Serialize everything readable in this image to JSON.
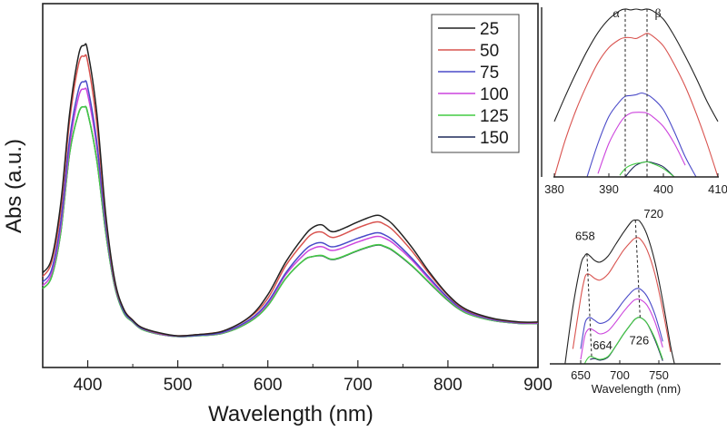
{
  "chart_data": [
    {
      "id": "main",
      "type": "line",
      "title": "",
      "xlabel": "Wavelength (nm)",
      "ylabel": "Abs (a.u.)",
      "xlim": [
        350,
        900
      ],
      "ylim": [
        0,
        1
      ],
      "xticks": [
        400,
        500,
        600,
        700,
        800,
        900
      ],
      "xtick_labels": [
        "400",
        "500",
        "600",
        "700",
        "800",
        "900"
      ],
      "yticks": [],
      "grid": false,
      "legend": {
        "placement": "top-right",
        "title": ""
      },
      "x": [
        350,
        360,
        370,
        380,
        390,
        396,
        400,
        410,
        420,
        430,
        440,
        450,
        460,
        480,
        500,
        520,
        550,
        580,
        600,
        620,
        640,
        650,
        660,
        670,
        680,
        700,
        720,
        730,
        740,
        760,
        780,
        800,
        820,
        850,
        880,
        900
      ],
      "series": [
        {
          "name": "25",
          "color": "#222222",
          "values": [
            0.26,
            0.3,
            0.45,
            0.7,
            0.86,
            0.885,
            0.87,
            0.7,
            0.42,
            0.24,
            0.16,
            0.13,
            0.11,
            0.095,
            0.087,
            0.09,
            0.1,
            0.14,
            0.2,
            0.29,
            0.36,
            0.385,
            0.392,
            0.374,
            0.378,
            0.4,
            0.418,
            0.41,
            0.39,
            0.33,
            0.26,
            0.2,
            0.16,
            0.135,
            0.125,
            0.125
          ]
        },
        {
          "name": "50",
          "color": "#d9534f",
          "values": [
            0.25,
            0.29,
            0.43,
            0.68,
            0.835,
            0.855,
            0.84,
            0.67,
            0.41,
            0.235,
            0.16,
            0.13,
            0.11,
            0.094,
            0.087,
            0.09,
            0.1,
            0.138,
            0.19,
            0.28,
            0.345,
            0.368,
            0.372,
            0.358,
            0.362,
            0.384,
            0.4,
            0.393,
            0.375,
            0.32,
            0.255,
            0.198,
            0.158,
            0.134,
            0.124,
            0.124
          ]
        },
        {
          "name": "75",
          "color": "#4a4ac8",
          "values": [
            0.235,
            0.27,
            0.4,
            0.63,
            0.765,
            0.785,
            0.77,
            0.62,
            0.39,
            0.23,
            0.155,
            0.128,
            0.108,
            0.093,
            0.086,
            0.088,
            0.097,
            0.132,
            0.18,
            0.26,
            0.32,
            0.338,
            0.343,
            0.332,
            0.336,
            0.355,
            0.37,
            0.364,
            0.348,
            0.3,
            0.245,
            0.192,
            0.155,
            0.132,
            0.123,
            0.123
          ]
        },
        {
          "name": "100",
          "color": "#cc44dd",
          "values": [
            0.225,
            0.26,
            0.385,
            0.61,
            0.745,
            0.765,
            0.75,
            0.605,
            0.385,
            0.228,
            0.154,
            0.127,
            0.107,
            0.092,
            0.086,
            0.088,
            0.096,
            0.13,
            0.176,
            0.255,
            0.31,
            0.327,
            0.332,
            0.322,
            0.326,
            0.345,
            0.36,
            0.355,
            0.34,
            0.295,
            0.24,
            0.19,
            0.153,
            0.131,
            0.122,
            0.122
          ]
        },
        {
          "name": "125",
          "color": "#44cc44",
          "values": [
            0.217,
            0.25,
            0.37,
            0.59,
            0.7,
            0.716,
            0.7,
            0.57,
            0.37,
            0.222,
            0.15,
            0.125,
            0.105,
            0.091,
            0.085,
            0.087,
            0.094,
            0.126,
            0.17,
            0.245,
            0.295,
            0.305,
            0.308,
            0.298,
            0.302,
            0.322,
            0.337,
            0.333,
            0.32,
            0.28,
            0.232,
            0.185,
            0.15,
            0.129,
            0.121,
            0.121
          ]
        },
        {
          "name": "150",
          "color": "#1f2a5a",
          "values": [
            0.217,
            0.25,
            0.37,
            0.59,
            0.7,
            0.716,
            0.7,
            0.57,
            0.37,
            0.222,
            0.15,
            0.125,
            0.105,
            0.091,
            0.085,
            0.087,
            0.094,
            0.126,
            0.17,
            0.245,
            0.295,
            0.305,
            0.307,
            0.297,
            0.301,
            0.321,
            0.336,
            0.332,
            0.319,
            0.279,
            0.231,
            0.184,
            0.15,
            0.129,
            0.121,
            0.121
          ]
        }
      ]
    },
    {
      "id": "inset-soret",
      "type": "line",
      "title": "",
      "xlabel": "",
      "ylabel": "",
      "xlim": [
        380,
        410
      ],
      "ylim": [
        0,
        1
      ],
      "xticks": [
        380,
        390,
        400,
        410
      ],
      "xtick_labels": [
        "380",
        "390",
        "400",
        "410"
      ],
      "grid": false,
      "annotations": [
        {
          "text": "α",
          "x": 393
        },
        {
          "text": "β",
          "x": 397
        }
      ],
      "dashed_lines_x": [
        393,
        397
      ],
      "x": [
        380,
        382,
        384,
        386,
        388,
        390,
        392,
        393,
        394,
        395,
        396,
        397,
        398,
        400,
        402,
        404,
        406,
        408,
        410
      ],
      "series": [
        {
          "name": "25",
          "color": "#222222",
          "values": [
            0.33,
            0.48,
            0.62,
            0.75,
            0.86,
            0.94,
            0.99,
            1.0,
            0.995,
            1.0,
            0.995,
            1.0,
            0.99,
            0.94,
            0.84,
            0.72,
            0.59,
            0.45,
            0.33
          ]
        },
        {
          "name": "50",
          "color": "#d9534f",
          "values": [
            0.0,
            0.22,
            0.4,
            0.55,
            0.68,
            0.77,
            0.82,
            0.83,
            0.83,
            0.825,
            0.84,
            0.855,
            0.84,
            0.78,
            0.67,
            0.54,
            0.38,
            0.2,
            0.0
          ]
        },
        {
          "name": "75",
          "color": "#4a4ac8",
          "values": [
            null,
            null,
            null,
            0.0,
            0.2,
            0.36,
            0.45,
            0.48,
            0.485,
            0.49,
            0.5,
            0.49,
            0.47,
            0.4,
            0.27,
            0.12,
            0.0,
            null,
            null
          ]
        },
        {
          "name": "100",
          "color": "#cc44dd",
          "values": [
            null,
            null,
            null,
            null,
            0.02,
            0.2,
            0.32,
            0.36,
            0.38,
            0.385,
            0.385,
            0.38,
            0.36,
            0.3,
            0.2,
            0.07,
            null,
            null,
            null
          ]
        },
        {
          "name": "125",
          "color": "#44cc44",
          "values": [
            null,
            null,
            null,
            null,
            null,
            null,
            0.01,
            0.05,
            0.07,
            0.08,
            0.085,
            0.09,
            0.08,
            0.05,
            0.0,
            null,
            null,
            null,
            null
          ]
        },
        {
          "name": "150",
          "color": "#1f2a5a",
          "values": [
            null,
            null,
            null,
            null,
            null,
            null,
            null,
            0.0,
            0.04,
            0.07,
            0.085,
            0.09,
            0.085,
            0.06,
            0.0,
            null,
            null,
            null,
            null
          ]
        }
      ]
    },
    {
      "id": "inset-q-band",
      "type": "line",
      "title": "",
      "xlabel": "Wavelength (nm)",
      "ylabel": "",
      "xlim": [
        630,
        770
      ],
      "ylim": [
        0,
        1
      ],
      "xticks": [
        650,
        700,
        750
      ],
      "xtick_labels": [
        "650",
        "700",
        "750"
      ],
      "grid": false,
      "annotations": [
        {
          "text": "658",
          "x": 658,
          "y": 0.78
        },
        {
          "text": "720",
          "x": 720,
          "y": 1.0
        },
        {
          "text": "664",
          "x": 664,
          "y": 0.12
        },
        {
          "text": "726",
          "x": 726,
          "y": 0.3
        }
      ],
      "dashed_lines": [
        {
          "x1": 658,
          "x2": 664
        },
        {
          "x1": 720,
          "x2": 726
        }
      ],
      "x": [
        630,
        640,
        650,
        655,
        658,
        662,
        668,
        675,
        685,
        695,
        705,
        715,
        720,
        726,
        735,
        745,
        755,
        765,
        770
      ],
      "series": [
        {
          "name": "25",
          "color": "#222222",
          "values": [
            0.0,
            0.38,
            0.66,
            0.72,
            0.735,
            0.72,
            0.69,
            0.68,
            0.72,
            0.8,
            0.88,
            0.95,
            0.96,
            0.95,
            0.86,
            0.68,
            0.42,
            0.12,
            0.0
          ]
        },
        {
          "name": "50",
          "color": "#d9534f",
          "values": [
            null,
            0.1,
            0.44,
            0.57,
            0.6,
            0.595,
            0.57,
            0.56,
            0.6,
            0.68,
            0.76,
            0.82,
            0.84,
            0.835,
            0.76,
            0.6,
            0.36,
            0.08,
            null
          ]
        },
        {
          "name": "75",
          "color": "#4a4ac8",
          "values": [
            null,
            null,
            0.1,
            0.26,
            0.3,
            0.31,
            0.29,
            0.27,
            0.29,
            0.35,
            0.42,
            0.48,
            0.5,
            0.5,
            0.45,
            0.33,
            0.15,
            null,
            null
          ]
        },
        {
          "name": "100",
          "color": "#cc44dd",
          "values": [
            null,
            null,
            0.03,
            0.18,
            0.22,
            0.235,
            0.22,
            0.2,
            0.22,
            0.28,
            0.35,
            0.41,
            0.43,
            0.43,
            0.39,
            0.28,
            0.11,
            null,
            null
          ]
        },
        {
          "name": "125",
          "color": "#44cc44",
          "values": [
            null,
            null,
            null,
            0.0,
            0.03,
            0.05,
            0.04,
            0.03,
            0.05,
            0.12,
            0.2,
            0.27,
            0.3,
            0.31,
            0.27,
            0.17,
            0.03,
            null,
            null
          ]
        },
        {
          "name": "150",
          "color": "#1f2a5a",
          "values": [
            null,
            null,
            null,
            null,
            null,
            0.03,
            0.035,
            0.025,
            0.045,
            0.12,
            0.2,
            0.27,
            0.3,
            0.31,
            0.27,
            0.16,
            0.02,
            null,
            null
          ]
        }
      ]
    }
  ]
}
